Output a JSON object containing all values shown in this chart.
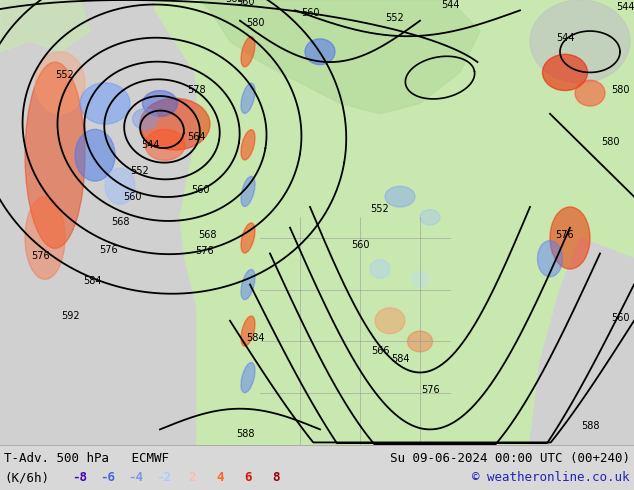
{
  "title_left": "T-Adv. 500 hPa   ECMWF",
  "title_right": "Su 09-06-2024 00:00 UTC (00+240)",
  "unit_label": "(K/6h)",
  "legend_values": [
    -8,
    -6,
    -4,
    -2,
    2,
    4,
    6,
    8
  ],
  "legend_colors": [
    "#4400bb",
    "#4466dd",
    "#7799ee",
    "#aaccff",
    "#ffbbaa",
    "#ff6622",
    "#dd1100",
    "#990000"
  ],
  "copyright": "© weatheronline.co.uk",
  "bg_color": "#d8d8d8",
  "ocean_color": "#d0d0d0",
  "land_color_main": "#c8e8b0",
  "land_color_dark": "#b0d898",
  "fig_width": 6.34,
  "fig_height": 4.9,
  "dpi": 100,
  "font_size_title": 9,
  "font_size_legend": 9,
  "font_size_contour": 7,
  "font_size_copyright": 9
}
